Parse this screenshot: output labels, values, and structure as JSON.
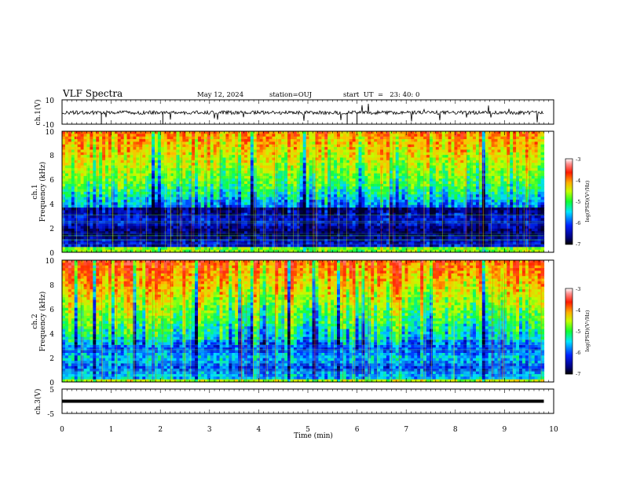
{
  "header": {
    "title": "VLF Spectra",
    "date": "May 12, 2024",
    "station": "station=OUJ",
    "start": "start  UT  =   23: 40: 0"
  },
  "chart_data": [
    {
      "type": "line",
      "name": "ch1-waveform",
      "ylabel": "ch.1(V)",
      "ylim": [
        -10,
        10
      ],
      "yticks": [
        "10",
        "-10"
      ],
      "xlim": [
        0,
        10
      ],
      "trace_level": -0.5,
      "trace_color": "#000000"
    },
    {
      "type": "heatmap",
      "name": "ch1-spectrogram",
      "ylabel": "ch.1",
      "ylabel2": "Frequency (kHz)",
      "ylim": [
        0,
        10
      ],
      "yticks": [
        "0",
        "2",
        "4",
        "6",
        "8",
        "10"
      ],
      "xlim": [
        0,
        9.8
      ],
      "colorbar": {
        "label": "log(PSD)(V²/Hz)",
        "range": [
          -7,
          -3
        ],
        "ticks": [
          "-3",
          "-4",
          "-5",
          "-6",
          "-7"
        ]
      }
    },
    {
      "type": "heatmap",
      "name": "ch2-spectrogram",
      "ylabel": "ch.2",
      "ylabel2": "Frequency (kHz)",
      "ylim": [
        0,
        10
      ],
      "yticks": [
        "0",
        "2",
        "4",
        "6",
        "8",
        "10"
      ],
      "xlim": [
        0,
        9.8
      ],
      "colorbar": {
        "label": "log(PSD)(V²/Hz)",
        "range": [
          -7,
          -3
        ],
        "ticks": [
          "-3",
          "-4",
          "-5",
          "-6",
          "-7"
        ]
      }
    },
    {
      "type": "line",
      "name": "ch3-waveform",
      "ylabel": "ch.3(V)",
      "ylim": [
        -5,
        5
      ],
      "yticks": [
        "5",
        "-5"
      ],
      "xlim": [
        0,
        10
      ],
      "trace_level": 0,
      "trace_color": "#000000"
    }
  ],
  "xaxis": {
    "label": "Time (min)",
    "ticks": [
      "0",
      "1",
      "2",
      "3",
      "4",
      "5",
      "6",
      "7",
      "8",
      "9",
      "10"
    ],
    "range": [
      0,
      10
    ]
  }
}
